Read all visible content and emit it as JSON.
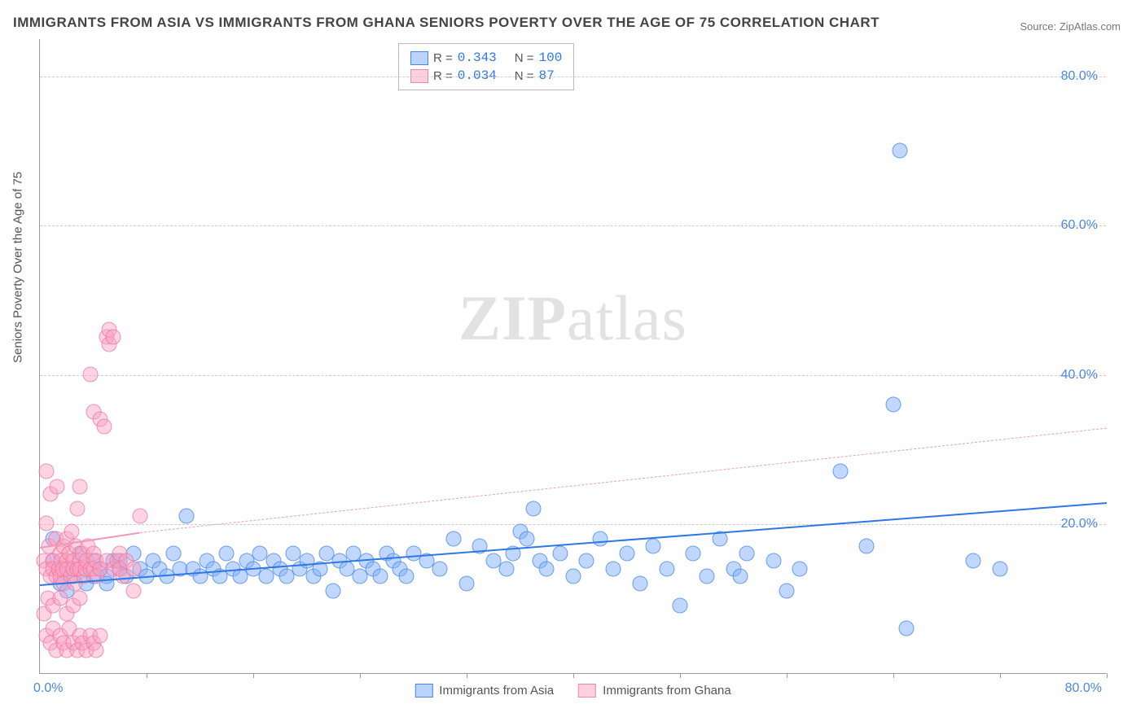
{
  "title": "IMMIGRANTS FROM ASIA VS IMMIGRANTS FROM GHANA SENIORS POVERTY OVER THE AGE OF 75 CORRELATION CHART",
  "source": "Source: ZipAtlas.com",
  "ylabel": "Seniors Poverty Over the Age of 75",
  "watermark_bold": "ZIP",
  "watermark_light": "atlas",
  "chart": {
    "type": "scatter",
    "xlim": [
      0,
      80
    ],
    "ylim": [
      0,
      85
    ],
    "x_origin_label": "0.0%",
    "x_max_label": "80.0%",
    "y_ticks": [
      20,
      40,
      60,
      80
    ],
    "y_tick_labels": [
      "20.0%",
      "40.0%",
      "60.0%",
      "80.0%"
    ],
    "x_tick_positions": [
      8,
      16,
      24,
      32,
      40,
      48,
      56,
      64,
      72,
      80
    ],
    "grid_color": "#cccccc",
    "axis_color": "#999999",
    "background_color": "#ffffff",
    "marker_size": 19,
    "marker_opacity": 0.5,
    "series": [
      {
        "name": "Immigrants from Asia",
        "color_fill": "#82b1ff",
        "color_stroke": "#4682e6",
        "R": "0.343",
        "N": "100",
        "trend": {
          "x1": 0,
          "y1": 12,
          "x2": 80,
          "y2": 23,
          "color": "#2e78e4",
          "width": 2.5,
          "dash": false
        },
        "points": [
          [
            1,
            15
          ],
          [
            1.5,
            12
          ],
          [
            2,
            14
          ],
          [
            2.5,
            13
          ],
          [
            3,
            16
          ],
          [
            3.5,
            12
          ],
          [
            4,
            15
          ],
          [
            4.5,
            14
          ],
          [
            5,
            13
          ],
          [
            5.5,
            15
          ],
          [
            6,
            14
          ],
          [
            6.5,
            13
          ],
          [
            7,
            16
          ],
          [
            7.5,
            14
          ],
          [
            8,
            13
          ],
          [
            8.5,
            15
          ],
          [
            9,
            14
          ],
          [
            9.5,
            13
          ],
          [
            10,
            16
          ],
          [
            10.5,
            14
          ],
          [
            11,
            21
          ],
          [
            11.5,
            14
          ],
          [
            12,
            13
          ],
          [
            12.5,
            15
          ],
          [
            13,
            14
          ],
          [
            13.5,
            13
          ],
          [
            14,
            16
          ],
          [
            14.5,
            14
          ],
          [
            15,
            13
          ],
          [
            15.5,
            15
          ],
          [
            16,
            14
          ],
          [
            16.5,
            16
          ],
          [
            17,
            13
          ],
          [
            17.5,
            15
          ],
          [
            18,
            14
          ],
          [
            18.5,
            13
          ],
          [
            19,
            16
          ],
          [
            19.5,
            14
          ],
          [
            20,
            15
          ],
          [
            20.5,
            13
          ],
          [
            21,
            14
          ],
          [
            21.5,
            16
          ],
          [
            22,
            11
          ],
          [
            22.5,
            15
          ],
          [
            23,
            14
          ],
          [
            23.5,
            16
          ],
          [
            24,
            13
          ],
          [
            24.5,
            15
          ],
          [
            25,
            14
          ],
          [
            25.5,
            13
          ],
          [
            26,
            16
          ],
          [
            26.5,
            15
          ],
          [
            27,
            14
          ],
          [
            27.5,
            13
          ],
          [
            28,
            16
          ],
          [
            29,
            15
          ],
          [
            30,
            14
          ],
          [
            31,
            18
          ],
          [
            32,
            12
          ],
          [
            33,
            17
          ],
          [
            34,
            15
          ],
          [
            35,
            14
          ],
          [
            35.5,
            16
          ],
          [
            36,
            19
          ],
          [
            36.5,
            18
          ],
          [
            37,
            22
          ],
          [
            37.5,
            15
          ],
          [
            38,
            14
          ],
          [
            39,
            16
          ],
          [
            40,
            13
          ],
          [
            41,
            15
          ],
          [
            42,
            18
          ],
          [
            43,
            14
          ],
          [
            44,
            16
          ],
          [
            45,
            12
          ],
          [
            46,
            17
          ],
          [
            47,
            14
          ],
          [
            48,
            9
          ],
          [
            49,
            16
          ],
          [
            50,
            13
          ],
          [
            51,
            18
          ],
          [
            52,
            14
          ],
          [
            52.5,
            13
          ],
          [
            53,
            16
          ],
          [
            55,
            15
          ],
          [
            56,
            11
          ],
          [
            57,
            14
          ],
          [
            60,
            27
          ],
          [
            62,
            17
          ],
          [
            64,
            36
          ],
          [
            64.5,
            70
          ],
          [
            65,
            6
          ],
          [
            70,
            15
          ],
          [
            72,
            14
          ],
          [
            1,
            18
          ],
          [
            2,
            11
          ],
          [
            3,
            14
          ],
          [
            4,
            13
          ],
          [
            5,
            12
          ],
          [
            6,
            15
          ]
        ]
      },
      {
        "name": "Immigrants from Ghana",
        "color_fill": "#ffa0be",
        "color_stroke": "#e66e96",
        "R": "0.034",
        "N": "87",
        "trend_solid": {
          "x1": 0,
          "y1": 17,
          "x2": 7.5,
          "y2": 19,
          "color": "#f19ab5",
          "width": 2.5
        },
        "trend_dash": {
          "x1": 7.5,
          "y1": 19,
          "x2": 80,
          "y2": 33,
          "color": "#e8a0b5",
          "width": 1.5
        },
        "points": [
          [
            0.3,
            15
          ],
          [
            0.5,
            14
          ],
          [
            0.5,
            20
          ],
          [
            0.5,
            27
          ],
          [
            0.7,
            17
          ],
          [
            0.8,
            13
          ],
          [
            0.8,
            24
          ],
          [
            1,
            15
          ],
          [
            1,
            14
          ],
          [
            1.2,
            18
          ],
          [
            1.2,
            13
          ],
          [
            1.3,
            25
          ],
          [
            1.4,
            14
          ],
          [
            1.5,
            16
          ],
          [
            1.5,
            13
          ],
          [
            1.6,
            15
          ],
          [
            1.7,
            14
          ],
          [
            1.8,
            17
          ],
          [
            1.8,
            12
          ],
          [
            2,
            18
          ],
          [
            2,
            15
          ],
          [
            2,
            14
          ],
          [
            2.2,
            16
          ],
          [
            2.3,
            13
          ],
          [
            2.4,
            19
          ],
          [
            2.5,
            15
          ],
          [
            2.5,
            14
          ],
          [
            2.6,
            12
          ],
          [
            2.7,
            17
          ],
          [
            2.8,
            14
          ],
          [
            2.8,
            22
          ],
          [
            3,
            15
          ],
          [
            3,
            14
          ],
          [
            3,
            25
          ],
          [
            3.2,
            16
          ],
          [
            3.3,
            13
          ],
          [
            3.4,
            14
          ],
          [
            3.5,
            15
          ],
          [
            3.6,
            17
          ],
          [
            3.8,
            14
          ],
          [
            3.8,
            40
          ],
          [
            4,
            16
          ],
          [
            4,
            14
          ],
          [
            4,
            35
          ],
          [
            4.2,
            15
          ],
          [
            4.3,
            13
          ],
          [
            4.5,
            34
          ],
          [
            4.5,
            14
          ],
          [
            4.8,
            33
          ],
          [
            5,
            15
          ],
          [
            5,
            45
          ],
          [
            5.2,
            46
          ],
          [
            5.2,
            44
          ],
          [
            5.5,
            14
          ],
          [
            5.5,
            45
          ],
          [
            5.8,
            15
          ],
          [
            6,
            14
          ],
          [
            6,
            16
          ],
          [
            6.2,
            13
          ],
          [
            6.5,
            15
          ],
          [
            7,
            14
          ],
          [
            7,
            11
          ],
          [
            7.5,
            21
          ],
          [
            0.5,
            5
          ],
          [
            0.8,
            4
          ],
          [
            1,
            6
          ],
          [
            1.2,
            3
          ],
          [
            1.5,
            5
          ],
          [
            1.8,
            4
          ],
          [
            2,
            3
          ],
          [
            2.2,
            6
          ],
          [
            2.5,
            4
          ],
          [
            2.8,
            3
          ],
          [
            3,
            5
          ],
          [
            3.2,
            4
          ],
          [
            3.5,
            3
          ],
          [
            3.8,
            5
          ],
          [
            4,
            4
          ],
          [
            4.2,
            3
          ],
          [
            4.5,
            5
          ],
          [
            0.3,
            8
          ],
          [
            0.6,
            10
          ],
          [
            1,
            9
          ],
          [
            1.5,
            10
          ],
          [
            2,
            8
          ],
          [
            2.5,
            9
          ],
          [
            3,
            10
          ]
        ]
      }
    ]
  },
  "legend_top": {
    "rows": [
      {
        "swatch": "blue",
        "r_label": "R =",
        "r_val": "0.343",
        "n_label": "N =",
        "n_val": "100"
      },
      {
        "swatch": "pink",
        "r_label": "R =",
        "r_val": "0.034",
        "n_label": "N =",
        "n_val": " 87"
      }
    ]
  },
  "legend_bottom": {
    "items": [
      {
        "swatch": "blue",
        "label": "Immigrants from Asia"
      },
      {
        "swatch": "pink",
        "label": "Immigrants from Ghana"
      }
    ]
  }
}
